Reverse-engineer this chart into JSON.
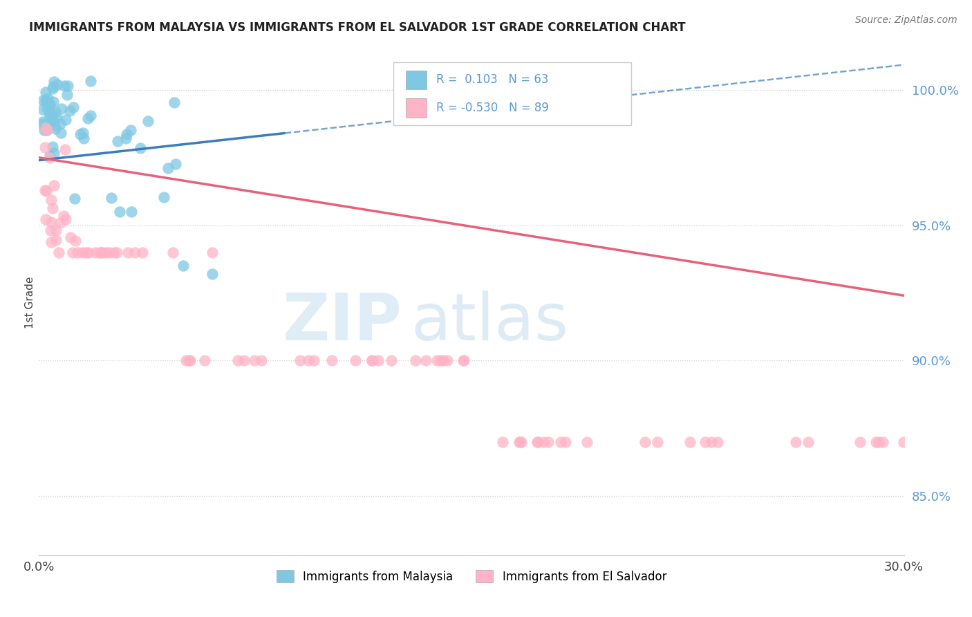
{
  "title": "IMMIGRANTS FROM MALAYSIA VS IMMIGRANTS FROM EL SALVADOR 1ST GRADE CORRELATION CHART",
  "source": "Source: ZipAtlas.com",
  "ylabel": "1st Grade",
  "y_ticks": [
    0.85,
    0.9,
    0.95,
    1.0
  ],
  "y_tick_labels": [
    "85.0%",
    "90.0%",
    "95.0%",
    "100.0%"
  ],
  "xlim": [
    0.0,
    0.3
  ],
  "ylim": [
    0.828,
    1.015
  ],
  "legend_malaysia": {
    "R": 0.103,
    "N": 63
  },
  "legend_elsalvador": {
    "R": -0.53,
    "N": 89
  },
  "malaysia_color": "#7ec8e3",
  "elsalvador_color": "#ffb3c6",
  "malaysia_line_color": "#3a7ebf",
  "elsalvador_line_color": "#e8607a",
  "watermark_zip": "ZIP",
  "watermark_atlas": "atlas",
  "background_color": "#ffffff"
}
